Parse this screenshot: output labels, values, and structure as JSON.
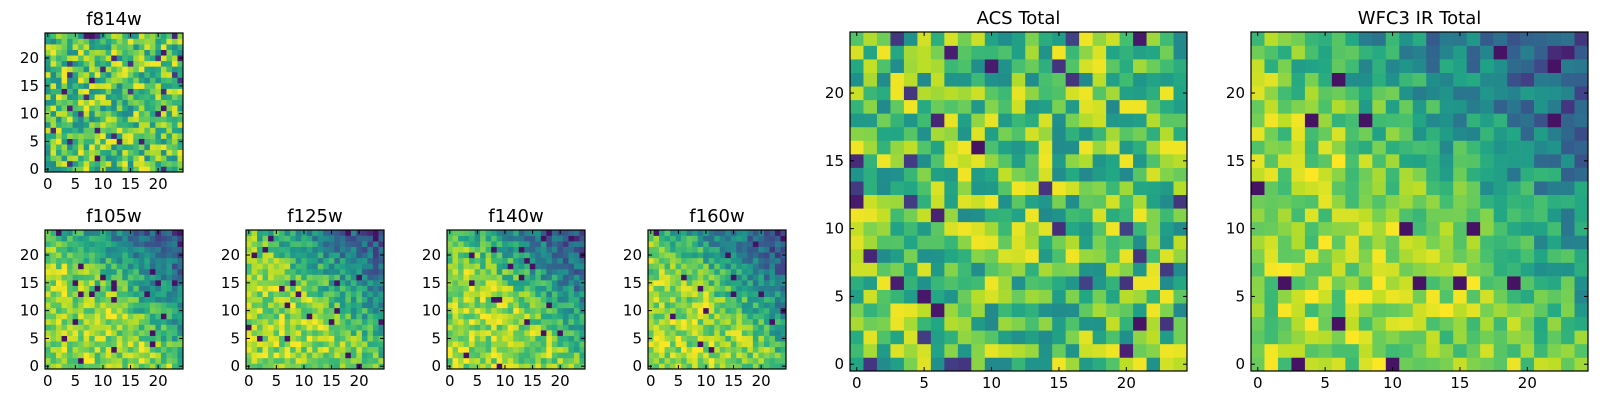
{
  "chart_data": [
    {
      "type": "heatmap",
      "title": "f814w",
      "x_range": [
        0,
        24
      ],
      "y_range": [
        0,
        24
      ],
      "x_ticks": [
        0,
        5,
        10,
        15,
        20
      ],
      "y_ticks": [
        0,
        5,
        10,
        15,
        20
      ],
      "pattern": "noise",
      "seed": 11,
      "colormap": "viridis"
    },
    {
      "type": "heatmap",
      "title": "f105w",
      "x_range": [
        0,
        24
      ],
      "y_range": [
        0,
        24
      ],
      "x_ticks": [
        0,
        5,
        10,
        15,
        20
      ],
      "y_ticks": [
        0,
        5,
        10,
        15,
        20
      ],
      "pattern": "diagonal",
      "seed": 23,
      "colormap": "viridis"
    },
    {
      "type": "heatmap",
      "title": "f125w",
      "x_range": [
        0,
        24
      ],
      "y_range": [
        0,
        24
      ],
      "x_ticks": [
        0,
        5,
        10,
        15,
        20
      ],
      "y_ticks": [
        0,
        5,
        10,
        15,
        20
      ],
      "pattern": "diagonal",
      "seed": 37,
      "colormap": "viridis"
    },
    {
      "type": "heatmap",
      "title": "f140w",
      "x_range": [
        0,
        24
      ],
      "y_range": [
        0,
        24
      ],
      "x_ticks": [
        0,
        5,
        10,
        15,
        20
      ],
      "y_ticks": [
        0,
        5,
        10,
        15,
        20
      ],
      "pattern": "diagonal",
      "seed": 41,
      "colormap": "viridis"
    },
    {
      "type": "heatmap",
      "title": "f160w",
      "x_range": [
        0,
        24
      ],
      "y_range": [
        0,
        24
      ],
      "x_ticks": [
        0,
        5,
        10,
        15,
        20
      ],
      "y_ticks": [
        0,
        5,
        10,
        15,
        20
      ],
      "pattern": "diagonal",
      "seed": 53,
      "colormap": "viridis"
    },
    {
      "type": "heatmap",
      "title": "ACS Total",
      "x_range": [
        0,
        24
      ],
      "y_range": [
        0,
        24
      ],
      "x_ticks": [
        0,
        5,
        10,
        15,
        20
      ],
      "y_ticks": [
        0,
        5,
        10,
        15,
        20
      ],
      "pattern": "noise",
      "seed": 67,
      "colormap": "viridis"
    },
    {
      "type": "heatmap",
      "title": "WFC3 IR Total",
      "x_range": [
        0,
        24
      ],
      "y_range": [
        0,
        24
      ],
      "x_ticks": [
        0,
        5,
        10,
        15,
        20
      ],
      "y_ticks": [
        0,
        5,
        10,
        15,
        20
      ],
      "pattern": "diagonal",
      "seed": 79,
      "colormap": "viridis"
    }
  ]
}
